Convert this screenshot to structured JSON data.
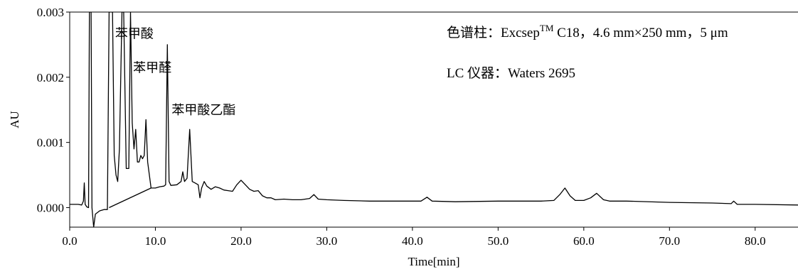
{
  "chart_data": {
    "type": "line",
    "title": "",
    "xlabel": "Time[min]",
    "ylabel": "AU",
    "xlim": [
      0,
      85
    ],
    "ylim": [
      -0.0003,
      0.003
    ],
    "x_ticks": [
      {
        "value": 0,
        "label": "0.0"
      },
      {
        "value": 10,
        "label": "10.0"
      },
      {
        "value": 20,
        "label": "20.0"
      },
      {
        "value": 30,
        "label": "30.0"
      },
      {
        "value": 40,
        "label": "40.0"
      },
      {
        "value": 50,
        "label": "50.0"
      },
      {
        "value": 60,
        "label": "60.0"
      },
      {
        "value": 70,
        "label": "70.0"
      },
      {
        "value": 80,
        "label": "80.0"
      }
    ],
    "y_ticks": [
      {
        "value": 0.0,
        "label": "0.000"
      },
      {
        "value": 0.001,
        "label": "0.001"
      },
      {
        "value": 0.002,
        "label": "0.002"
      },
      {
        "value": 0.003,
        "label": "0.003"
      }
    ],
    "grid": false,
    "series": [
      {
        "color": "#000000",
        "points": [
          [
            0.0,
            5e-05
          ],
          [
            1.0,
            5e-05
          ],
          [
            1.4,
            4e-05
          ],
          [
            1.6,
            0.0001
          ],
          [
            1.7,
            0.00038
          ],
          [
            1.8,
            5e-05
          ],
          [
            2.0,
            1e-05
          ],
          [
            2.2,
            0.0
          ],
          [
            2.3,
            0.003
          ],
          [
            2.5,
            0.003
          ],
          [
            2.6,
            0.0
          ],
          [
            2.8,
            -0.0003
          ],
          [
            3.0,
            -0.0001
          ],
          [
            3.5,
            -5e-05
          ],
          [
            4.0,
            -3e-05
          ],
          [
            4.4,
            -3e-05
          ],
          [
            4.6,
            0.003
          ],
          [
            5.0,
            0.003
          ],
          [
            5.2,
            0.0008
          ],
          [
            5.4,
            0.0005
          ],
          [
            5.6,
            0.0004
          ],
          [
            5.8,
            0.0009
          ],
          [
            6.1,
            0.003
          ],
          [
            6.3,
            0.003
          ],
          [
            6.6,
            0.0006
          ],
          [
            6.9,
            0.0006
          ],
          [
            7.1,
            0.003
          ],
          [
            7.3,
            0.0013
          ],
          [
            7.5,
            0.0009
          ],
          [
            7.7,
            0.0012
          ],
          [
            7.9,
            0.0007
          ],
          [
            8.1,
            0.0007
          ],
          [
            8.3,
            0.0008
          ],
          [
            8.5,
            0.00075
          ],
          [
            8.7,
            0.0008
          ],
          [
            8.9,
            0.00135
          ],
          [
            9.1,
            0.0007
          ],
          [
            9.3,
            0.0005
          ],
          [
            9.5,
            0.0003
          ],
          [
            10.0,
            0.0003
          ],
          [
            10.5,
            0.00032
          ],
          [
            11.0,
            0.00033
          ],
          [
            11.2,
            0.00035
          ],
          [
            11.4,
            0.0025
          ],
          [
            11.6,
            0.0004
          ],
          [
            11.8,
            0.00034
          ],
          [
            12.5,
            0.00035
          ],
          [
            13.0,
            0.0004
          ],
          [
            13.2,
            0.00055
          ],
          [
            13.4,
            0.0004
          ],
          [
            13.7,
            0.00045
          ],
          [
            14.0,
            0.0012
          ],
          [
            14.3,
            0.0004
          ],
          [
            14.6,
            0.00038
          ],
          [
            15.0,
            0.00035
          ],
          [
            15.2,
            0.00015
          ],
          [
            15.4,
            0.0003
          ],
          [
            15.7,
            0.0004
          ],
          [
            16.0,
            0.00033
          ],
          [
            16.5,
            0.00028
          ],
          [
            17.0,
            0.00032
          ],
          [
            17.5,
            0.0003
          ],
          [
            18.0,
            0.00027
          ],
          [
            18.5,
            0.00026
          ],
          [
            19.0,
            0.00025
          ],
          [
            19.5,
            0.00035
          ],
          [
            20.0,
            0.00042
          ],
          [
            20.5,
            0.00035
          ],
          [
            21.0,
            0.00028
          ],
          [
            21.5,
            0.00025
          ],
          [
            22.0,
            0.00026
          ],
          [
            22.5,
            0.00018
          ],
          [
            23.0,
            0.00015
          ],
          [
            23.5,
            0.00015
          ],
          [
            24.0,
            0.00012
          ],
          [
            25.0,
            0.00013
          ],
          [
            26.0,
            0.00012
          ],
          [
            27.0,
            0.00012
          ],
          [
            28.0,
            0.00014
          ],
          [
            28.5,
            0.0002
          ],
          [
            29.0,
            0.00013
          ],
          [
            30.0,
            0.00012
          ],
          [
            32.0,
            0.00011
          ],
          [
            35.0,
            0.0001
          ],
          [
            38.0,
            0.0001
          ],
          [
            41.0,
            0.0001
          ],
          [
            41.7,
            0.00016
          ],
          [
            42.3,
            0.0001
          ],
          [
            45.0,
            9e-05
          ],
          [
            50.0,
            0.0001
          ],
          [
            55.0,
            0.0001
          ],
          [
            56.5,
            0.00011
          ],
          [
            57.2,
            0.0002
          ],
          [
            57.8,
            0.0003
          ],
          [
            58.4,
            0.00018
          ],
          [
            59.0,
            0.00011
          ],
          [
            60.0,
            0.00011
          ],
          [
            60.8,
            0.00015
          ],
          [
            61.5,
            0.00022
          ],
          [
            62.3,
            0.00012
          ],
          [
            63.0,
            0.0001
          ],
          [
            65.0,
            0.0001
          ],
          [
            70.0,
            8e-05
          ],
          [
            75.0,
            7e-05
          ],
          [
            77.2,
            6e-05
          ],
          [
            77.5,
            0.0001
          ],
          [
            77.9,
            5e-05
          ],
          [
            80.0,
            5e-05
          ],
          [
            85.0,
            4e-05
          ]
        ]
      },
      {
        "color": "#000000",
        "points": [
          [
            4.6,
            0.0
          ],
          [
            9.5,
            0.0003
          ]
        ]
      }
    ],
    "annotations": [
      {
        "text": "苯甲酸",
        "x": 5.3,
        "y": 0.0026
      },
      {
        "text": "苯甲醛",
        "x": 7.4,
        "y": 0.00208
      },
      {
        "text": "苯甲酸乙酯",
        "x": 11.9,
        "y": 0.00143
      }
    ],
    "info": {
      "line1_prefix": "色谱柱：Excsep",
      "line1_sup": "TM",
      "line1_suffix": " C18，4.6 mm×250 mm，5 μm",
      "line2": "LC 仪器：Waters 2695"
    }
  }
}
